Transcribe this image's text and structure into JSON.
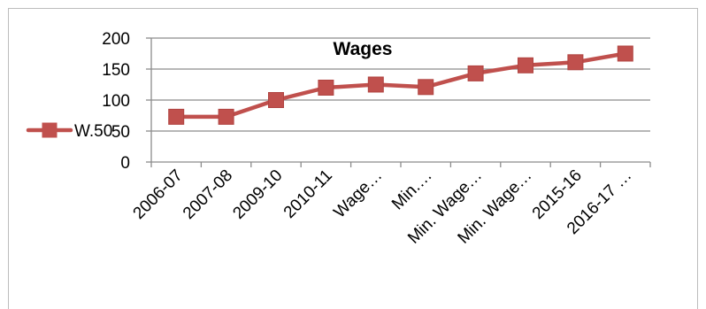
{
  "chart_data": {
    "type": "line",
    "title": "Wages",
    "categories": [
      "2006-07",
      "2007-08",
      "2009-10",
      "2010-11",
      "Wage…",
      "Min.…",
      "Min. Wage…",
      "Min. Wage…",
      "2015-16",
      "2016-17 …"
    ],
    "series": [
      {
        "name": "W.50",
        "values": [
          73,
          73,
          100,
          120,
          125,
          121,
          143,
          156,
          161,
          175
        ],
        "color": "#c0504d",
        "marker": "square"
      }
    ],
    "ylim": [
      0,
      200
    ],
    "yticks": [
      0,
      50,
      100,
      150,
      200
    ],
    "grid": true,
    "legend_position": "left"
  }
}
